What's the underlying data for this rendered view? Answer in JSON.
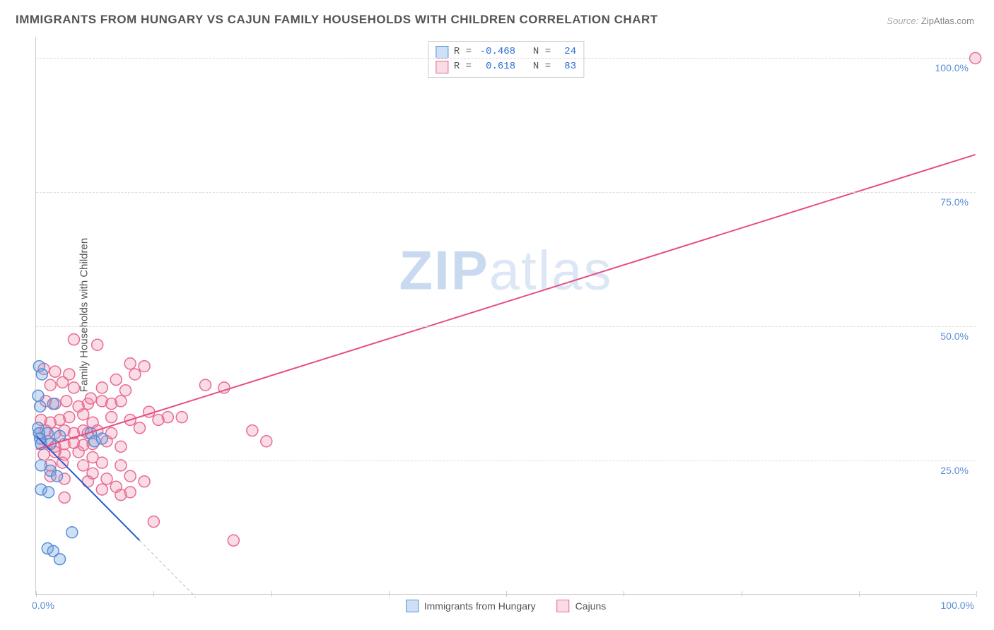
{
  "title": "IMMIGRANTS FROM HUNGARY VS CAJUN FAMILY HOUSEHOLDS WITH CHILDREN CORRELATION CHART",
  "source_label": "Source:",
  "source_value": "ZipAtlas.com",
  "ylabel": "Family Households with Children",
  "watermark": {
    "prefix": "ZIP",
    "suffix": "atlas"
  },
  "chart": {
    "type": "scatter",
    "xlim": [
      0,
      100
    ],
    "ylim": [
      0,
      104
    ],
    "grid_y": [
      25,
      50,
      75,
      100
    ],
    "grid_color": "#dddddd",
    "axis_color": "#cccccc",
    "tick_x_positions": [
      0,
      12.5,
      25,
      37.5,
      50,
      62.5,
      75,
      87.5,
      100
    ],
    "ytick_labels": [
      {
        "y": 25,
        "text": "25.0%"
      },
      {
        "y": 50,
        "text": "50.0%"
      },
      {
        "y": 75,
        "text": "75.0%"
      },
      {
        "y": 100,
        "text": "100.0%"
      }
    ],
    "xtick_labels": {
      "left": "0.0%",
      "right": "100.0%"
    },
    "tick_label_color": "#5b8dd6",
    "marker_radius": 8,
    "marker_stroke_width": 1.5,
    "series": [
      {
        "id": "hungary",
        "label": "Immigrants from Hungary",
        "fill": "rgba(115,165,225,0.35)",
        "stroke": "#5b8dd6",
        "R": "-0.468",
        "N": "24",
        "trend": {
          "x1": 0,
          "y1": 29.5,
          "x2": 11,
          "y2": 10,
          "extend_to_x": 17,
          "color": "#2a5cc4",
          "width": 2
        },
        "points": [
          [
            0.3,
            42.5
          ],
          [
            0.6,
            41
          ],
          [
            0.2,
            37
          ],
          [
            0.4,
            35
          ],
          [
            1.8,
            35.5
          ],
          [
            0.2,
            31
          ],
          [
            0.3,
            30
          ],
          [
            1.2,
            30
          ],
          [
            0.4,
            29
          ],
          [
            0.5,
            28
          ],
          [
            1.5,
            28
          ],
          [
            2.5,
            29.5
          ],
          [
            5.8,
            30
          ],
          [
            6.2,
            28.5
          ],
          [
            7,
            29
          ],
          [
            0.5,
            24
          ],
          [
            1.5,
            23
          ],
          [
            2.2,
            22
          ],
          [
            0.5,
            19.5
          ],
          [
            1.3,
            19
          ],
          [
            3.8,
            11.5
          ],
          [
            1.2,
            8.5
          ],
          [
            1.8,
            8
          ],
          [
            2.5,
            6.5
          ]
        ]
      },
      {
        "id": "cajuns",
        "label": "Cajuns",
        "fill": "rgba(240,140,170,0.30)",
        "stroke": "#e86a93",
        "R": "0.618",
        "N": "83",
        "trend": {
          "x1": 0,
          "y1": 27,
          "x2": 100,
          "y2": 82,
          "color": "#e64e84",
          "width": 2
        },
        "points": [
          [
            100,
            100
          ],
          [
            4,
            47.5
          ],
          [
            6.5,
            46.5
          ],
          [
            0.8,
            42
          ],
          [
            2,
            41.5
          ],
          [
            3.5,
            41
          ],
          [
            1.5,
            39
          ],
          [
            2.8,
            39.5
          ],
          [
            4,
            38.5
          ],
          [
            10,
            43
          ],
          [
            11.5,
            42.5
          ],
          [
            10.5,
            41
          ],
          [
            8.5,
            40
          ],
          [
            7,
            38.5
          ],
          [
            9.5,
            38
          ],
          [
            18,
            39
          ],
          [
            20,
            38.5
          ],
          [
            1,
            36
          ],
          [
            2,
            35.5
          ],
          [
            3.2,
            36
          ],
          [
            4.5,
            35
          ],
          [
            5.5,
            35.5
          ],
          [
            5.8,
            36.5
          ],
          [
            7,
            36
          ],
          [
            8,
            35.5
          ],
          [
            9,
            36
          ],
          [
            0.5,
            32.5
          ],
          [
            1.5,
            32
          ],
          [
            2.5,
            32.5
          ],
          [
            3.5,
            33
          ],
          [
            5,
            33.5
          ],
          [
            6,
            32
          ],
          [
            8,
            33
          ],
          [
            10,
            32.5
          ],
          [
            12,
            34
          ],
          [
            14,
            33
          ],
          [
            0.3,
            30
          ],
          [
            1,
            30.5
          ],
          [
            2,
            30
          ],
          [
            3,
            30.5
          ],
          [
            4,
            30
          ],
          [
            5,
            30.5
          ],
          [
            5.5,
            30
          ],
          [
            6.5,
            30.5
          ],
          [
            8,
            30
          ],
          [
            11,
            31
          ],
          [
            13,
            32.5
          ],
          [
            15.5,
            33
          ],
          [
            23,
            30.5
          ],
          [
            24.5,
            28.5
          ],
          [
            0.5,
            28
          ],
          [
            1.2,
            28.5
          ],
          [
            2,
            27.5
          ],
          [
            3,
            28
          ],
          [
            4,
            28.2
          ],
          [
            5,
            27.8
          ],
          [
            6,
            28
          ],
          [
            7.5,
            28.5
          ],
          [
            9,
            27.5
          ],
          [
            0.8,
            26
          ],
          [
            2,
            26.5
          ],
          [
            3,
            26
          ],
          [
            4.5,
            26.5
          ],
          [
            6,
            25.5
          ],
          [
            1.5,
            24
          ],
          [
            2.8,
            24.5
          ],
          [
            5,
            24
          ],
          [
            7,
            24.5
          ],
          [
            9,
            24
          ],
          [
            1.5,
            22
          ],
          [
            3,
            21.5
          ],
          [
            6,
            22.5
          ],
          [
            5.5,
            21
          ],
          [
            7.5,
            21.5
          ],
          [
            10,
            22
          ],
          [
            11.5,
            21
          ],
          [
            7,
            19.5
          ],
          [
            8.5,
            20
          ],
          [
            10,
            19
          ],
          [
            3,
            18
          ],
          [
            9,
            18.5
          ],
          [
            12.5,
            13.5
          ],
          [
            21,
            10
          ]
        ]
      }
    ],
    "legend_swatch_size": 18
  }
}
